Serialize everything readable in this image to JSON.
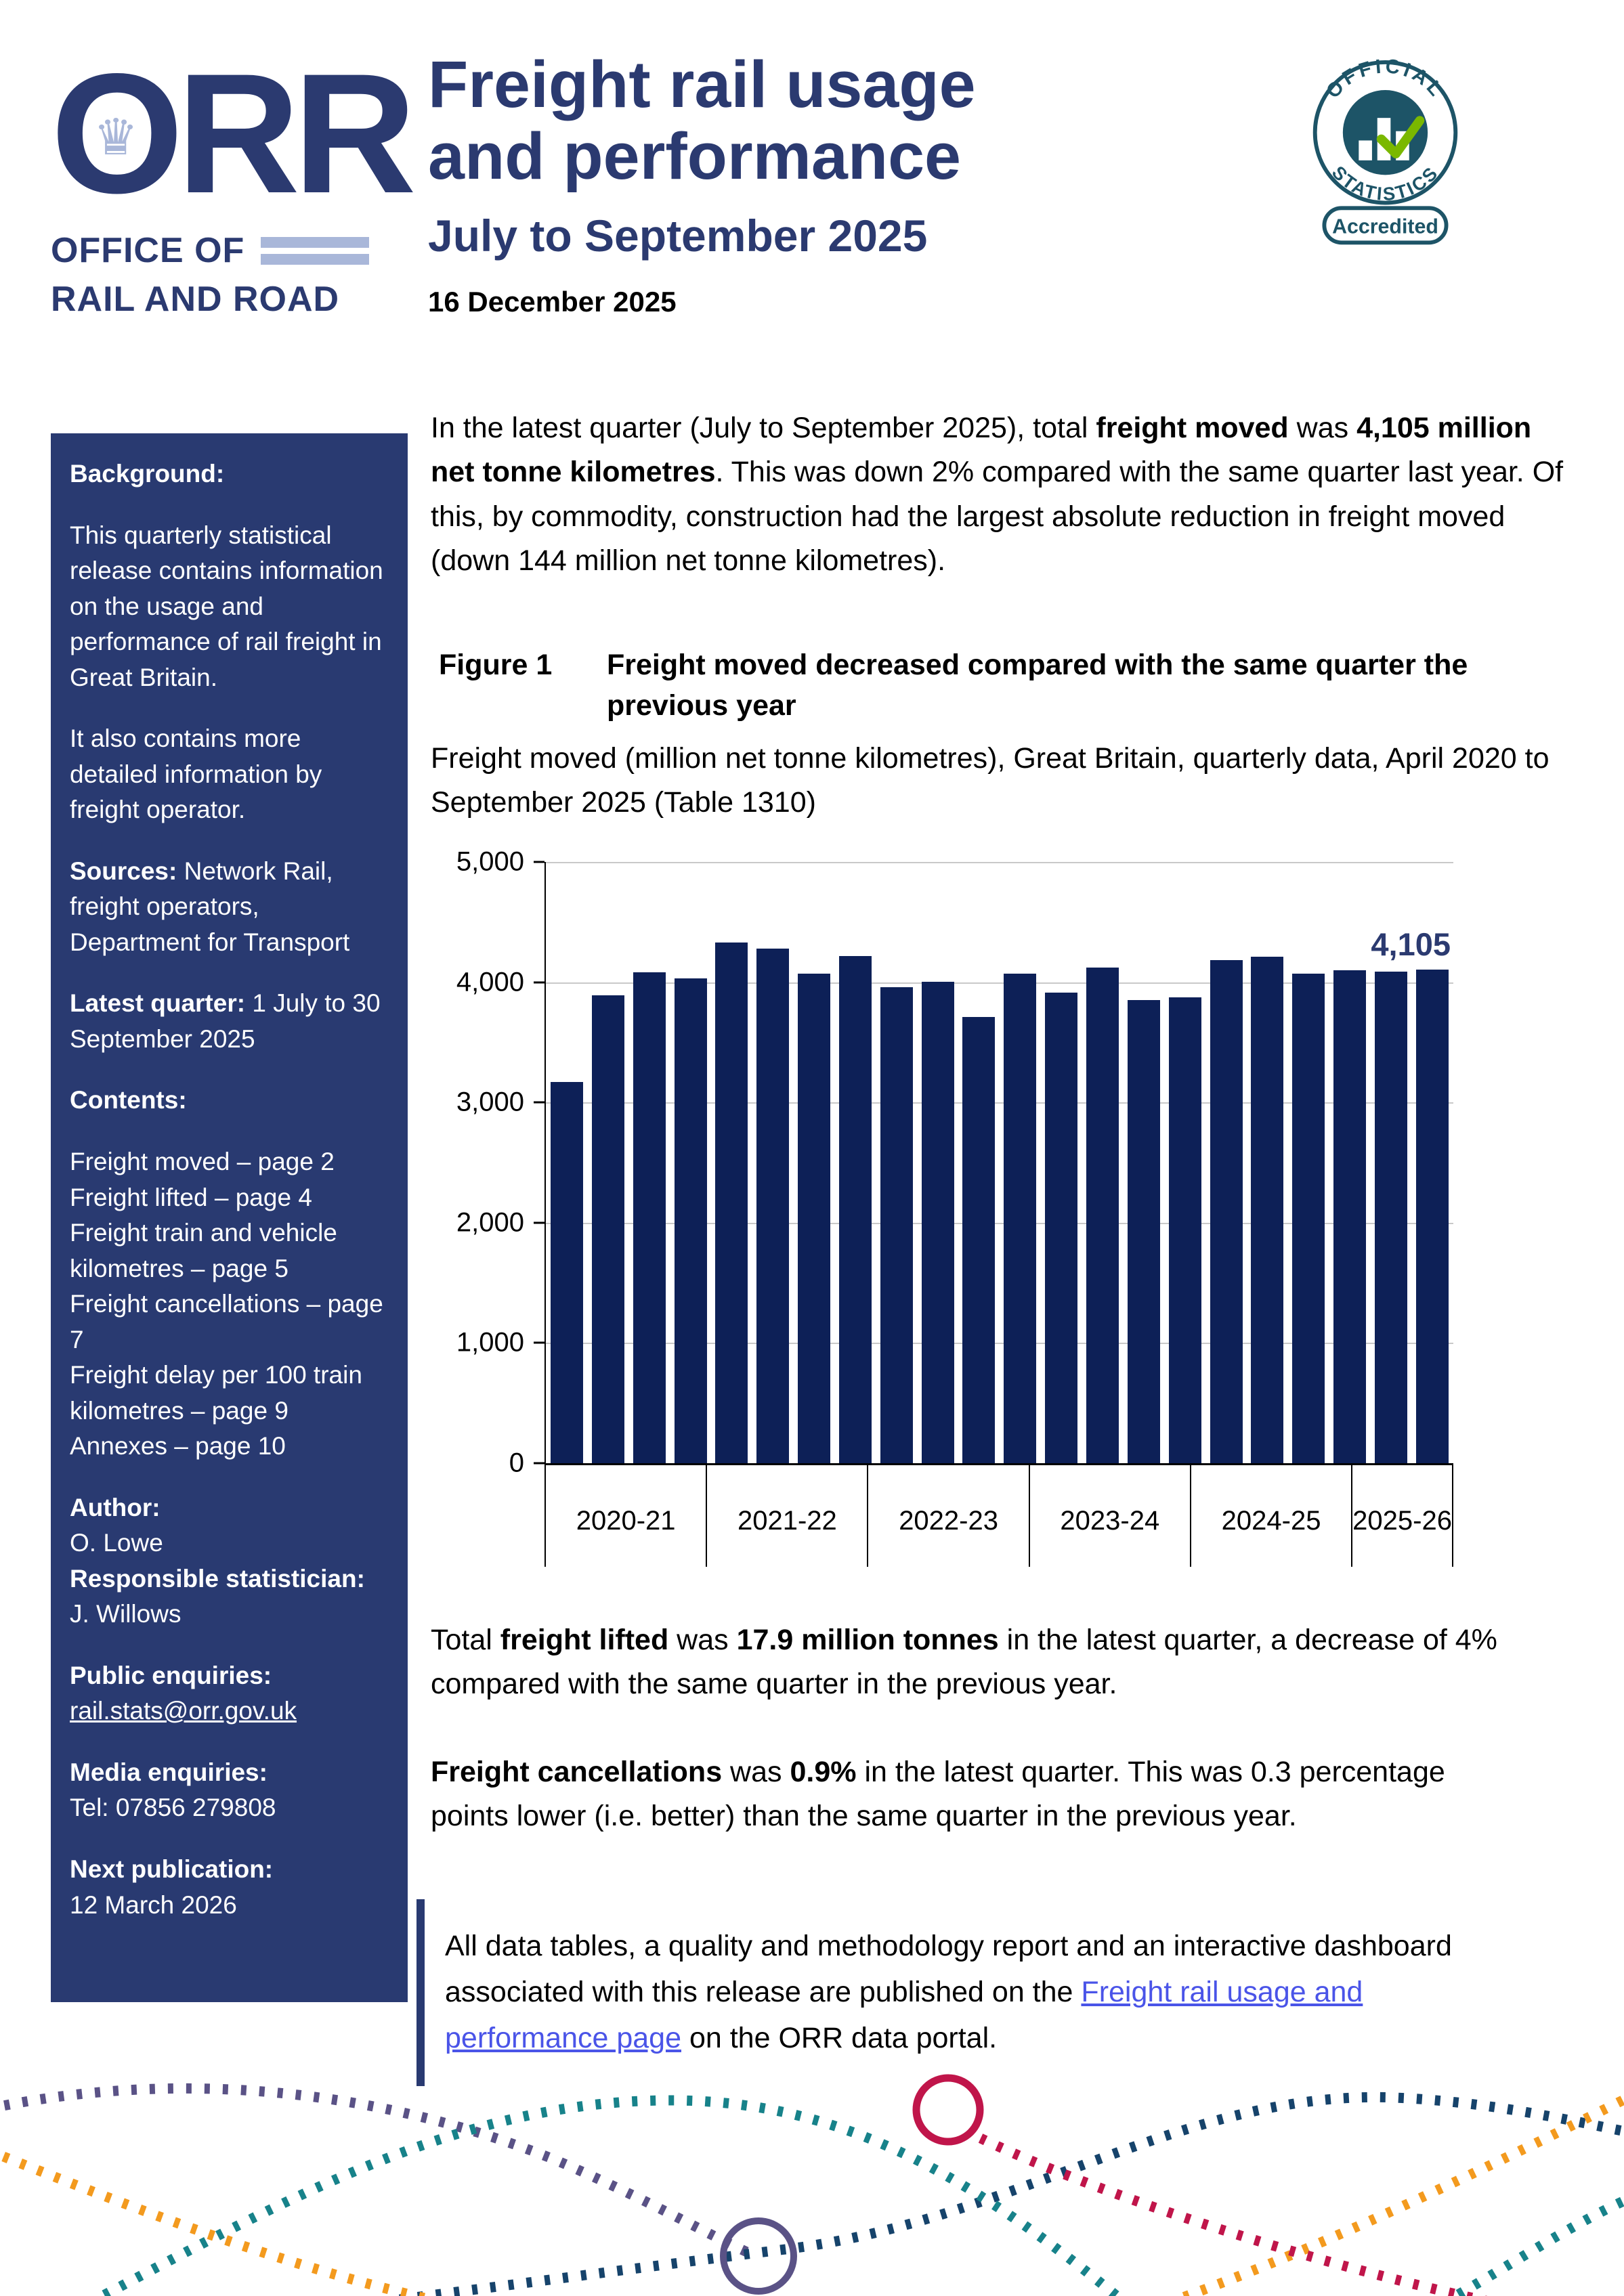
{
  "header": {
    "logo": {
      "acronym": "ORR",
      "crown_icon": "♛",
      "office": "OFFICE OF",
      "railroad": "RAIL AND ROAD"
    },
    "badge": {
      "arc_top": "OFFICIAL",
      "arc_bottom": "STATISTICS",
      "pill": "Accredited"
    },
    "title_line1": "Freight rail usage",
    "title_line2": "and performance",
    "period": "July to September 2025",
    "date": "16 December 2025"
  },
  "sidebar": {
    "blocks": [
      [
        {
          "t": "Background:",
          "b": true
        }
      ],
      [
        {
          "t": "This quarterly statistical release contains information on the usage and performance of rail freight in Great Britain."
        }
      ],
      [
        {
          "t": "It also contains more detailed information by freight operator."
        }
      ],
      [
        {
          "t": "Sources:",
          "b": true
        },
        {
          "t": " Network Rail, freight operators, Department for Transport"
        }
      ],
      [
        {
          "t": "Latest quarter:",
          "b": true
        },
        {
          "t": " 1 July to 30 September 2025"
        }
      ],
      [
        {
          "t": "Contents:",
          "b": true
        }
      ],
      [
        {
          "t": "Freight moved – page 2"
        },
        {
          "t": "Freight lifted – page 4",
          "nl": true
        },
        {
          "t": "Freight train and vehicle kilometres – page 5",
          "nl": true
        },
        {
          "t": "Freight cancellations – page 7",
          "nl": true
        },
        {
          "t": "Freight delay per 100 train kilometres – page 9",
          "nl": true
        },
        {
          "t": "Annexes – page 10",
          "nl": true
        }
      ],
      [
        {
          "t": "Author:",
          "b": true
        },
        {
          "t": "O. Lowe",
          "nl": true
        },
        {
          "t": "Responsible statistician:",
          "b": true,
          "nl": true
        },
        {
          "t": "J. Willows",
          "nl": true
        }
      ],
      [
        {
          "t": "Public enquiries:",
          "b": true
        },
        {
          "t": "rail.stats@orr.gov.uk",
          "u": true,
          "nl": true,
          "name": "email-link"
        }
      ],
      [
        {
          "t": "Media enquiries:",
          "b": true
        },
        {
          "t": "Tel: 07856 279808",
          "nl": true
        }
      ],
      [
        {
          "t": "Next publication:",
          "b": true
        },
        {
          "t": "12 March 2026",
          "nl": true
        }
      ]
    ]
  },
  "main": {
    "intro": [
      {
        "t": "In the latest quarter (July to September 2025), total "
      },
      {
        "t": "freight moved",
        "b": true
      },
      {
        "t": " was "
      },
      {
        "t": "4,105 million net tonne kilometres",
        "b": true
      },
      {
        "t": ". This was down 2% compared with the same quarter last year. Of this, by commodity, construction had the largest absolute reduction in freight moved (down 144 million net tonne kilometres)."
      }
    ],
    "post_paragraphs": [
      [
        {
          "t": "Total "
        },
        {
          "t": "freight lifted",
          "b": true
        },
        {
          "t": " was "
        },
        {
          "t": "17.9 million tonnes",
          "b": true
        },
        {
          "t": " in the latest quarter, a decrease of 4% compared with the same quarter in the previous year."
        }
      ],
      [
        {
          "t": "Freight cancellations",
          "b": true
        },
        {
          "t": " was "
        },
        {
          "t": "0.9%",
          "b": true
        },
        {
          "t": " in the latest quarter. This was 0.3 percentage points lower (i.e. better) than the same quarter in the previous year."
        }
      ]
    ],
    "infobox": [
      {
        "t": "All data tables, a quality and methodology report and an interactive dashboard associated with this release are published on the "
      },
      {
        "t": "Freight rail usage and performance page",
        "link": true,
        "name": "freight-page-link"
      },
      {
        "t": " on the ORR data portal."
      }
    ]
  },
  "figure": {
    "label": "Figure 1",
    "heading": "Freight moved decreased compared with the same quarter the previous year",
    "description": "Freight moved (million net tonne kilometres), Great Britain, quarterly data, April 2020 to September 2025 (Table 1310)"
  },
  "chart_data": {
    "type": "bar",
    "title": "Freight moved decreased compared with the same quarter the previous year",
    "subtitle": "Freight moved (million net tonne kilometres), Great Britain, quarterly data, April 2020 to September 2025 (Table 1310)",
    "ylabel": "million net tonne kilometres",
    "ylim": [
      0,
      5000
    ],
    "ytick_interval": 1000,
    "grid": true,
    "bar_color": "#0d2057",
    "year_groups": [
      {
        "label": "2020-21",
        "values": [
          3170,
          3890,
          4080,
          4030
        ]
      },
      {
        "label": "2021-22",
        "values": [
          4330,
          4280,
          4070,
          4215
        ]
      },
      {
        "label": "2022-23",
        "values": [
          3960,
          4005,
          3710,
          4070
        ]
      },
      {
        "label": "2023-24",
        "values": [
          3915,
          4120,
          3850,
          3875
        ]
      },
      {
        "label": "2024-25",
        "values": [
          4185,
          4210,
          4070,
          4100
        ]
      },
      {
        "label": "2025-26",
        "values": [
          4090,
          4105
        ]
      }
    ],
    "annotation": {
      "text": "4,105",
      "value": 4105,
      "bar_index": 21
    }
  },
  "colors": {
    "navy_title": "#2b3a70",
    "sidebar_bg": "#293a71",
    "bar": "#0d2057",
    "grid": "#c9c9c9",
    "link": "#4a54e8",
    "logo_light_blue": "#a9b7d9",
    "badge_teal": "#1d5467",
    "badge_green": "#7ab800",
    "footer_teal": "#17828a",
    "footer_orange": "#f39a1e",
    "footer_purple": "#5a5286",
    "footer_navy": "#16436b",
    "footer_crimson": "#c0154a"
  }
}
